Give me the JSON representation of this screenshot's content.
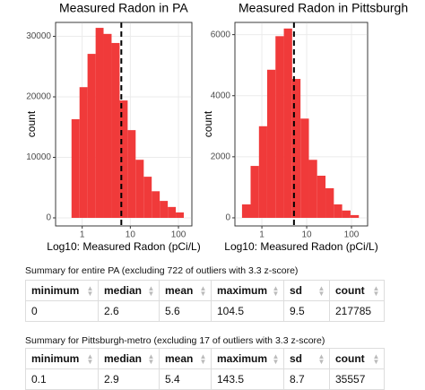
{
  "chart_data": [
    {
      "type": "histogram",
      "title": "Measured Radon in PA",
      "x_label": "Log10: Measured Radon (pCi/L)",
      "y_label": "count",
      "bins": [
        0.6,
        0.88,
        1.29,
        1.9,
        2.78,
        4.08,
        6.0,
        8.8,
        12.9,
        19,
        27.8,
        40.8,
        60,
        88,
        129
      ],
      "values": [
        16300,
        21600,
        27100,
        31400,
        30400,
        28900,
        19400,
        14500,
        9600,
        6800,
        4400,
        2800,
        1800,
        900
      ],
      "color": "#f03a3a",
      "log_x": true,
      "xlim": [
        0.28,
        190
      ],
      "xticks": [
        1,
        10,
        100
      ],
      "ylim": [
        -1333,
        32300
      ],
      "yticks": [
        0,
        10000,
        20000,
        30000
      ],
      "grid": true,
      "vline": 6.5
    },
    {
      "type": "histogram",
      "title": "Measured Radon in Pittsburgh",
      "x_label": "Log10: Measured Radon (pCi/L)",
      "y_label": "count",
      "bins": [
        0.36,
        0.56,
        0.86,
        1.31,
        2.01,
        3.09,
        4.74,
        7.28,
        11.2,
        17.1,
        26.3,
        40.4,
        61.9,
        95,
        146
      ],
      "values": [
        440,
        1700,
        3000,
        4850,
        5950,
        6200,
        4550,
        3250,
        1900,
        1380,
        970,
        440,
        240,
        90
      ],
      "color": "#f03a3a",
      "log_x": true,
      "xlim": [
        0.25,
        229
      ],
      "xticks": [
        1,
        10,
        100
      ],
      "ylim": [
        -265,
        6400
      ],
      "yticks": [
        0,
        2000,
        4000,
        6000
      ],
      "grid": true,
      "vline": 5.2
    }
  ],
  "tables": [
    {
      "caption": "Summary for entire PA (excluding 722 of outliers with 3.3 z-score)",
      "columns": [
        "minimum",
        "median",
        "mean",
        "maximum",
        "sd",
        "count"
      ],
      "rows": [
        [
          0,
          2.6,
          5.6,
          104.5,
          9.5,
          217785
        ]
      ]
    },
    {
      "caption": "Summary for Pittsburgh-metro (excluding 17 of outliers with 3.3 z-score)",
      "columns": [
        "minimum",
        "median",
        "mean",
        "maximum",
        "sd",
        "count"
      ],
      "rows": [
        [
          0.1,
          2.9,
          5.4,
          143.5,
          8.7,
          35557
        ]
      ]
    }
  ]
}
